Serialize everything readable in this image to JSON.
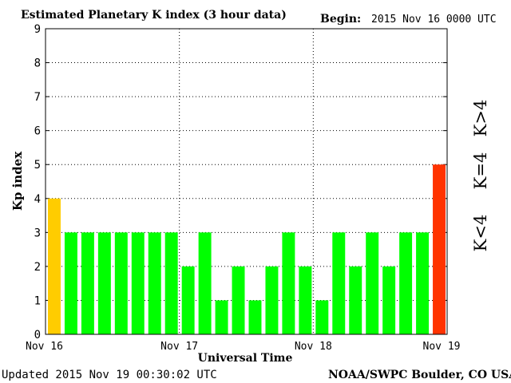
{
  "header": {
    "title": "Estimated Planetary K index (3 hour data)",
    "begin_label": "Begin:",
    "begin_value": "2015 Nov 16 0000 UTC"
  },
  "footer": {
    "updated": "Updated 2015 Nov 19 00:30:02 UTC",
    "credit": "NOAA/SWPC Boulder, CO USA"
  },
  "legend": {
    "low": "K<4",
    "mid": "K=4",
    "high": "K>4"
  },
  "colors": {
    "low": "#00ff00",
    "mid": "#ffcc00",
    "high": "#ff3300"
  },
  "chart_data": {
    "type": "bar",
    "xlabel": "Universal Time",
    "ylabel": "Kp index",
    "ylim": [
      0,
      9
    ],
    "yticks": [
      "0",
      "1",
      "2",
      "3",
      "4",
      "5",
      "6",
      "7",
      "8",
      "9"
    ],
    "xticks": [
      "Nov 16",
      "Nov 17",
      "Nov 18",
      "Nov 19"
    ],
    "grid": "dotted at day boundaries and integer Kp levels",
    "values": [
      4,
      3,
      3,
      3,
      3,
      3,
      3,
      3,
      2,
      3,
      1,
      2,
      1,
      2,
      3,
      2,
      1,
      3,
      2,
      3,
      2,
      3,
      3,
      5
    ]
  }
}
